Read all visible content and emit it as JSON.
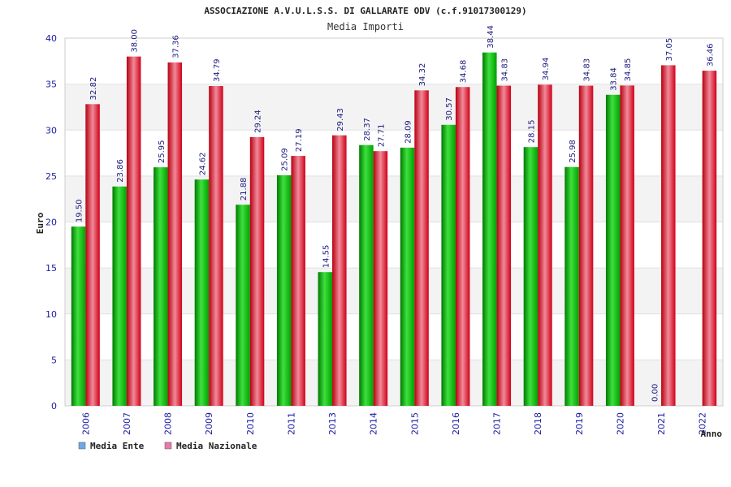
{
  "chart_data": {
    "type": "bar",
    "title": "ASSOCIAZIONE A.V.U.L.S.S. DI GALLARATE ODV (c.f.91017300129)",
    "subtitle": "Media Importi",
    "ylabel": "Euro",
    "xlabel": "Anno",
    "ylim": [
      0,
      40
    ],
    "yticks": [
      0,
      5,
      10,
      15,
      20,
      25,
      30,
      35,
      40
    ],
    "grid": "horizontal-bands",
    "legend_position": "bottom-left",
    "categories": [
      "2006",
      "2007",
      "2008",
      "2009",
      "2010",
      "2011",
      "2013",
      "2014",
      "2015",
      "2016",
      "2017",
      "2018",
      "2019",
      "2020",
      "2021",
      "2022"
    ],
    "series": [
      {
        "name": "Media Ente",
        "color": "#00b000",
        "legend_color": "#6fa8e6",
        "values": [
          19.5,
          23.86,
          25.95,
          24.62,
          21.88,
          25.09,
          14.55,
          28.37,
          28.09,
          30.57,
          38.44,
          28.15,
          25.98,
          33.84,
          0.0,
          null
        ],
        "labels": [
          "19.50",
          "23.86",
          "25.95",
          "24.62",
          "21.88",
          "25.09",
          "14.55",
          "28.37",
          "28.09",
          "30.57",
          "38.44",
          "28.15",
          "25.98",
          "33.84",
          "0.00",
          ""
        ]
      },
      {
        "name": "Media Nazionale",
        "color": "#e0001a",
        "legend_color": "#e87aa8",
        "values": [
          32.82,
          38.0,
          37.36,
          34.79,
          29.24,
          27.19,
          29.43,
          27.71,
          34.32,
          34.68,
          34.83,
          34.94,
          34.83,
          34.85,
          37.05,
          36.46
        ],
        "labels": [
          "32.82",
          "38.00",
          "37.36",
          "34.79",
          "29.24",
          "27.19",
          "29.43",
          "27.71",
          "34.32",
          "34.68",
          "34.83",
          "34.94",
          "34.83",
          "34.85",
          "37.05",
          "36.46"
        ]
      }
    ]
  }
}
